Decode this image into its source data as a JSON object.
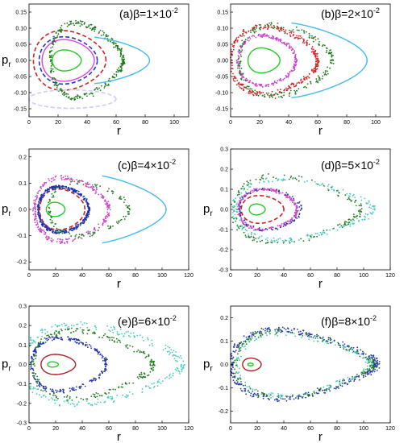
{
  "chart_data": [
    {
      "type": "scatter",
      "panel": "a",
      "label": "(a)",
      "beta_base": "β=1×10",
      "beta_exp": "-2",
      "xlabel": "r",
      "ylabel": "p",
      "ylabel_sub": "r",
      "xlim": [
        0,
        110
      ],
      "ylim": [
        -0.175,
        0.175
      ],
      "xticks": [
        0,
        20,
        40,
        60,
        80,
        100
      ],
      "yticks": [
        -0.15,
        -0.1,
        -0.05,
        0.0,
        0.05,
        0.1,
        0.15
      ],
      "ytick_labels": [
        "-0.15",
        "-0.10",
        "-0.05",
        "0.00",
        "0.05",
        "0.10",
        "0.15"
      ],
      "series": [
        {
          "style": "curve",
          "color": "#22cc22",
          "cx": 26,
          "cy": 0,
          "rx": 10,
          "ry": 0.038,
          "skew": 0.3
        },
        {
          "style": "curve",
          "color": "#dd44dd",
          "cx": 27,
          "cy": 0,
          "rx": 18,
          "ry": 0.075,
          "skew": 0.3
        },
        {
          "style": "dash",
          "color": "#2233cc",
          "cx": 27,
          "cy": 0,
          "rx": 20,
          "ry": 0.085,
          "skew": 0.3
        },
        {
          "style": "dash",
          "color": "#cc2222",
          "cx": 28,
          "cy": 0,
          "rx": 25,
          "ry": 0.11,
          "skew": 0.35
        },
        {
          "style": "dots",
          "color": "#1a7a1a",
          "cx": 40,
          "cy": 0,
          "rx": 25,
          "ry": 0.15,
          "skew": 0.55,
          "n": 300
        },
        {
          "style": "curve",
          "color": "#44bbee",
          "cx": 45,
          "cy": 0,
          "rx": 38,
          "ry": 0.09,
          "skew": 0.4,
          "part": "right"
        },
        {
          "style": "dash",
          "color": "#ccccff",
          "cx": 30,
          "cy": -0.12,
          "rx": 30,
          "ry": 0.03,
          "skew": 0.1
        }
      ]
    },
    {
      "type": "scatter",
      "panel": "b",
      "label": "(b)",
      "beta_base": "β=2×10",
      "beta_exp": "-2",
      "xlabel": "r",
      "ylabel": "",
      "ylabel_sub": "",
      "xlim": [
        0,
        110
      ],
      "ylim": [
        -0.175,
        0.175
      ],
      "xticks": [
        0,
        20,
        40,
        60,
        80,
        100
      ],
      "yticks": [
        -0.15,
        -0.1,
        -0.05,
        0.0,
        0.05,
        0.1,
        0.15
      ],
      "ytick_labels": [
        "-0.15",
        "-0.10",
        "-0.05",
        "0.00",
        "0.05",
        "0.10",
        "0.15"
      ],
      "series": [
        {
          "style": "curve",
          "color": "#22cc22",
          "cx": 23,
          "cy": 0,
          "rx": 11,
          "ry": 0.045,
          "skew": 0.3
        },
        {
          "style": "dots",
          "color": "#cc44cc",
          "cx": 25,
          "cy": 0,
          "rx": 20,
          "ry": 0.09,
          "skew": 0.3,
          "n": 260
        },
        {
          "style": "dots",
          "color": "#cc2222",
          "cx": 30,
          "cy": 0,
          "rx": 30,
          "ry": 0.13,
          "skew": 0.45,
          "n": 320
        },
        {
          "style": "dots",
          "color": "#1a7a1a",
          "cx": 38,
          "cy": 0,
          "rx": 32,
          "ry": 0.14,
          "skew": 0.5,
          "n": 200
        },
        {
          "style": "curve",
          "color": "#44bbee",
          "cx": 42,
          "cy": 0,
          "rx": 52,
          "ry": 0.15,
          "skew": 0.45,
          "part": "right"
        }
      ]
    },
    {
      "type": "scatter",
      "panel": "c",
      "label": "(c)",
      "beta_base": "β=4×10",
      "beta_exp": "-2",
      "xlabel": "r",
      "ylabel": "p",
      "ylabel_sub": "r",
      "xlim": [
        0,
        120
      ],
      "ylim": [
        -0.23,
        0.23
      ],
      "xticks": [
        0,
        20,
        40,
        60,
        80,
        100,
        120
      ],
      "yticks": [
        -0.2,
        -0.1,
        0.0,
        0.1,
        0.2
      ],
      "ytick_labels": [
        "-0.2",
        "-0.1",
        "0.0",
        "0.1",
        "0.2"
      ],
      "series": [
        {
          "style": "curve",
          "color": "#22cc22",
          "cx": 20,
          "cy": 0,
          "rx": 7,
          "ry": 0.03,
          "skew": 0.2
        },
        {
          "style": "dash",
          "color": "#cc2222",
          "cx": 25,
          "cy": 0,
          "rx": 17,
          "ry": 0.09,
          "skew": 0.3
        },
        {
          "style": "dots",
          "color": "#2233aa",
          "cx": 26,
          "cy": 0,
          "rx": 19,
          "ry": 0.1,
          "skew": 0.3,
          "n": 420
        },
        {
          "style": "dots",
          "color": "#cc44cc",
          "cx": 32,
          "cy": 0,
          "rx": 28,
          "ry": 0.15,
          "skew": 0.45,
          "n": 260
        },
        {
          "style": "dots",
          "color": "#1a7a1a",
          "cx": 45,
          "cy": 0,
          "rx": 30,
          "ry": 0.13,
          "skew": 0.5,
          "n": 120
        },
        {
          "style": "curve",
          "color": "#44bbee",
          "cx": 55,
          "cy": 0,
          "rx": 48,
          "ry": 0.17,
          "skew": 0.5,
          "part": "right"
        }
      ]
    },
    {
      "type": "scatter",
      "panel": "d",
      "label": "(d)",
      "beta_base": "β=5×10",
      "beta_exp": "-2",
      "xlabel": "r",
      "ylabel": "p",
      "ylabel_sub": "r",
      "xlim": [
        0,
        120
      ],
      "ylim": [
        -0.3,
        0.3
      ],
      "xticks": [
        0,
        20,
        40,
        60,
        80,
        100,
        120
      ],
      "yticks": [
        -0.3,
        -0.2,
        -0.1,
        0.0,
        0.1,
        0.2,
        0.3
      ],
      "ytick_labels": [
        "-0.3",
        "-0.2",
        "-0.1",
        "0.0",
        "0.1",
        "0.2",
        "0.3"
      ],
      "series": [
        {
          "style": "curve",
          "color": "#22cc22",
          "cx": 20,
          "cy": 0,
          "rx": 6,
          "ry": 0.03,
          "skew": 0.2
        },
        {
          "style": "dash",
          "color": "#cc2222",
          "cx": 24,
          "cy": 0,
          "rx": 16,
          "ry": 0.08,
          "skew": 0.3
        },
        {
          "style": "dots",
          "color": "#cc44cc",
          "cx": 28,
          "cy": 0,
          "rx": 22,
          "ry": 0.12,
          "skew": 0.35,
          "n": 260
        },
        {
          "style": "dots",
          "color": "#2233aa",
          "cx": 30,
          "cy": 0,
          "rx": 23,
          "ry": 0.12,
          "skew": 0.35,
          "n": 80
        },
        {
          "style": "dots",
          "color": "#1a7a1a",
          "cx": 50,
          "cy": 0,
          "rx": 48,
          "ry": 0.22,
          "skew": 0.6,
          "n": 160
        },
        {
          "style": "dots",
          "color": "#44ccbb",
          "cx": 55,
          "cy": 0,
          "rx": 52,
          "ry": 0.2,
          "skew": 0.6,
          "n": 200
        }
      ]
    },
    {
      "type": "scatter",
      "panel": "e",
      "label": "(e)",
      "beta_base": "β=6×10",
      "beta_exp": "-2",
      "xlabel": "r",
      "ylabel": "p",
      "ylabel_sub": "r",
      "xlim": [
        0,
        120
      ],
      "ylim": [
        -0.3,
        0.3
      ],
      "xticks": [
        0,
        20,
        40,
        60,
        80,
        100,
        120
      ],
      "yticks": [
        -0.3,
        -0.2,
        -0.1,
        0.0,
        0.1,
        0.2,
        0.3
      ],
      "ytick_labels": [
        "-0.3",
        "-0.2",
        "-0.1",
        "0.0",
        "0.1",
        "0.2",
        "0.3"
      ],
      "series": [
        {
          "style": "curve",
          "color": "#22cc22",
          "cx": 18,
          "cy": 0,
          "rx": 4,
          "ry": 0.015,
          "skew": 0.2
        },
        {
          "style": "curve",
          "color": "#aa2222",
          "cx": 22,
          "cy": 0,
          "rx": 13,
          "ry": 0.06,
          "skew": 0.3
        },
        {
          "style": "dots",
          "color": "#2233aa",
          "cx": 30,
          "cy": 0,
          "rx": 28,
          "ry": 0.17,
          "skew": 0.45,
          "n": 260
        },
        {
          "style": "dots",
          "color": "#1a7a1a",
          "cx": 48,
          "cy": 0,
          "rx": 45,
          "ry": 0.23,
          "skew": 0.6,
          "n": 220
        },
        {
          "style": "dots",
          "color": "#44ccbb",
          "cx": 55,
          "cy": 0,
          "rx": 60,
          "ry": 0.27,
          "skew": 0.6,
          "n": 260
        }
      ]
    },
    {
      "type": "scatter",
      "panel": "f",
      "label": "(f)",
      "beta_base": "β=8×10",
      "beta_exp": "-2",
      "xlabel": "r",
      "ylabel": "p",
      "ylabel_sub": "r",
      "xlim": [
        0,
        120
      ],
      "ylim": [
        -0.25,
        0.25
      ],
      "xticks": [
        0,
        20,
        40,
        60,
        80,
        100,
        120
      ],
      "yticks": [
        -0.2,
        -0.1,
        0.0,
        0.1,
        0.2
      ],
      "ytick_labels": [
        "-0.2",
        "-0.1",
        "0.0",
        "0.1",
        "0.2"
      ],
      "series": [
        {
          "style": "curve",
          "color": "#22cc22",
          "cx": 15,
          "cy": 0,
          "rx": 2,
          "ry": 0.006,
          "skew": 0.1
        },
        {
          "style": "curve",
          "color": "#aa2222",
          "cx": 16,
          "cy": 0,
          "rx": 7,
          "ry": 0.03,
          "skew": 0.2
        },
        {
          "style": "dots",
          "color": "#2233aa",
          "cx": 55,
          "cy": 0,
          "rx": 55,
          "ry": 0.2,
          "skew": 0.65,
          "n": 380
        },
        {
          "style": "dots",
          "color": "#1a7a1a",
          "cx": 55,
          "cy": 0,
          "rx": 52,
          "ry": 0.19,
          "skew": 0.65,
          "n": 200
        },
        {
          "style": "dots",
          "color": "#44ccbb",
          "cx": 55,
          "cy": 0,
          "rx": 50,
          "ry": 0.18,
          "skew": 0.65,
          "n": 140
        }
      ]
    }
  ]
}
